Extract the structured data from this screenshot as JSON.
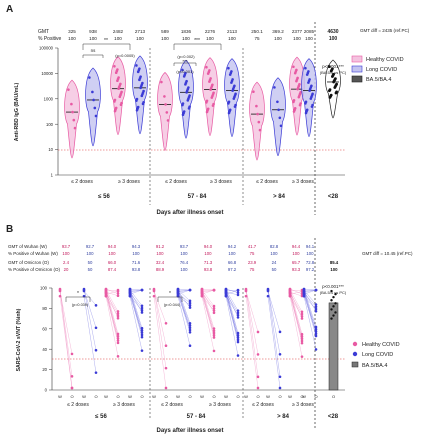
{
  "chart_data": [
    {
      "panel": "A",
      "type": "violin+scatter",
      "ylabel": "Anti-RBD IgG (BAU/mL)",
      "yscale": "log",
      "ylim": [
        1,
        100000
      ],
      "yticks": [
        "1",
        "10",
        "100",
        "1000",
        "10000",
        "100000"
      ],
      "xlabel": "Days after illness onset",
      "header_labels": [
        "GMT",
        "% Positive"
      ],
      "gmt_values": [
        "325",
        "938",
        "2482",
        "2713",
        "589",
        "1836",
        "2276",
        "2113",
        "250.1",
        "369.2",
        "2377",
        "2085",
        "4630"
      ],
      "pct_positive": [
        "100",
        "100",
        "100",
        "100",
        "100",
        "100",
        "100",
        "100",
        "75",
        "100",
        "100",
        "100",
        "100"
      ],
      "gmt_note": "GMT diff = 2435 (ref.PC)",
      "dose_labels": [
        "≤ 2 doses",
        "≥ 3 doses",
        "≤ 2 doses",
        "≥ 3 doses",
        "≤ 2 doses",
        "≥ 3 doses"
      ],
      "groups": [
        "≤ 56",
        "57 - 84",
        "> 84",
        "<28"
      ],
      "legend": [
        "Healthy COVID",
        "Long COVID",
        "BA.5/BA.4"
      ],
      "colors": {
        "healthy": "#e85aa3",
        "long": "#3b3bd6",
        "ba5": "#222222",
        "healthy_fill": "#f4c2df",
        "long_fill": "#c3c3f0"
      },
      "annotations": [
        "**",
        "(p=0.0005)",
        "***",
        "(p=0.002)",
        "***",
        "(p<0.001)",
        "ns",
        "p<0.001***",
        "(BA.5/4 vs PC)"
      ],
      "series_medians": [
        {
          "group": "≤ 56 ≤2 healthy",
          "median": 300
        },
        {
          "group": "≤ 56 ≤2 long",
          "median": 900
        },
        {
          "group": "≤ 56 ≥3 healthy",
          "median": 2500
        },
        {
          "group": "≤ 56 ≥3 long",
          "median": 2700
        },
        {
          "group": "57-84 ≤2 healthy",
          "median": 600
        },
        {
          "group": "57-84 ≤2 long",
          "median": 1800
        },
        {
          "group": "57-84 ≥3 healthy",
          "median": 2300
        },
        {
          "group": "57-84 ≥3 long",
          "median": 2100
        },
        {
          "group": ">84 ≤2 healthy",
          "median": 250
        },
        {
          "group": ">84 ≤2 long",
          "median": 370
        },
        {
          "group": ">84 ≥3 healthy",
          "median": 2400
        },
        {
          "group": ">84 ≥3 long",
          "median": 2100
        },
        {
          "group": "<28 BA.5/BA.4",
          "median": 4600
        }
      ]
    },
    {
      "panel": "B",
      "type": "paired-line",
      "ylabel": "SARS-CoV-2 sVNT (%inh)",
      "ylim": [
        0,
        100
      ],
      "yticks": [
        "0",
        "20",
        "40",
        "60",
        "80",
        "100"
      ],
      "threshold": 30,
      "xlabel": "Days after illness onset",
      "row_labels": [
        "GMT of Wuhan (W)",
        "% Positive of Wuhan (W)",
        "GMT of Omicron (O)",
        "% Positive of Omicron (O)"
      ],
      "gmt_wuhan": [
        "93.7",
        "92.7",
        "94.0",
        "94.3",
        "91.2",
        "93.7",
        "94.0",
        "94.2",
        "41.7",
        "82.8",
        "94.4",
        "94.1"
      ],
      "pct_wuhan": [
        "100",
        "100",
        "100",
        "100",
        "100",
        "100",
        "100",
        "100",
        "75",
        "100",
        "100",
        "100"
      ],
      "gmt_omicron": [
        "2.4",
        "50",
        "66.0",
        "71.6",
        "32.4",
        "76.4",
        "71.3",
        "66.8",
        "23.9",
        "24",
        "65.7",
        "72.8",
        "85.4"
      ],
      "pct_omicron": [
        "20",
        "50",
        "87.4",
        "93.8",
        "88.9",
        "100",
        "93.8",
        "97.2",
        "75",
        "50",
        "93.3",
        "97.2",
        "100"
      ],
      "gmt_note": "GMT diff = 10.45 (ref.PC)",
      "pair_labels": [
        "W",
        "O"
      ],
      "dose_labels": [
        "≤ 2 doses",
        "≥ 3 doses",
        "≤ 2 doses",
        "≥ 3 doses",
        "≤ 2 doses",
        "≥ 3 doses"
      ],
      "groups": [
        "≤ 56",
        "57 - 84",
        "> 84",
        "<28"
      ],
      "legend": [
        "Healthy COVID",
        "Long COVID",
        "BA.5/BA.4"
      ],
      "annotations": [
        "*",
        "(p=0.039)",
        "*",
        "(p=0.044)",
        "ns",
        "p<0.001***",
        "(BA.5/4 vs PC)"
      ],
      "bar_value": 85.4
    }
  ]
}
